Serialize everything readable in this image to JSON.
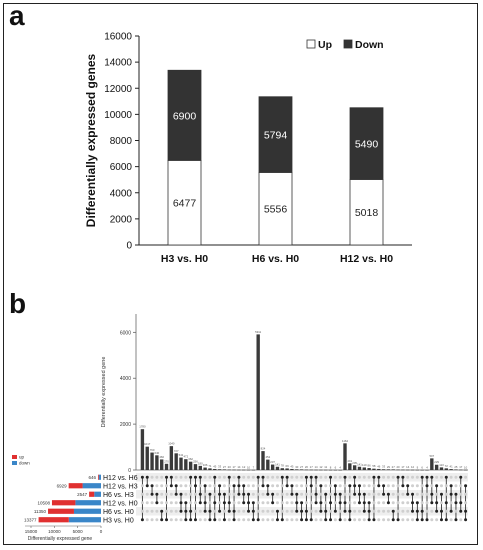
{
  "panels": {
    "a": "a",
    "b": "b"
  },
  "chart_data": [
    {
      "type": "bar",
      "stacked": true,
      "title": "",
      "xlabel": "",
      "ylabel": "Differentially expressed genes",
      "ylim": [
        0,
        16000
      ],
      "yticks": [
        0,
        2000,
        4000,
        6000,
        8000,
        10000,
        12000,
        14000,
        16000
      ],
      "ytick_labels": [
        "0",
        "2000",
        "4000",
        "6000",
        "8000",
        "10000",
        "12000",
        "14000",
        "16000"
      ],
      "categories": [
        "H3 vs. H0",
        "H6 vs. H0",
        "H12 vs. H0"
      ],
      "series": [
        {
          "name": "Up",
          "values": [
            6477,
            5556,
            5018
          ],
          "color": "#ffffff"
        },
        {
          "name": "Down",
          "values": [
            6900,
            5794,
            5490
          ],
          "color": "#333333"
        }
      ],
      "legend_position": "top-right"
    },
    {
      "type": "bar",
      "subtype": "upset",
      "title": "",
      "ylabel": "Differentially expressed gene",
      "ylim": [
        0,
        6800
      ],
      "yticks": [
        0,
        2000,
        4000,
        6000
      ],
      "ytick_labels": [
        "0",
        "2000",
        "4000",
        "6000"
      ],
      "intersection_values": [
        1780,
        1017,
        760,
        640,
        460,
        270,
        1040,
        727,
        541,
        472,
        362,
        256,
        180,
        106,
        71,
        45,
        33,
        27,
        20,
        17,
        14,
        12,
        10,
        7,
        5911,
        824,
        452,
        237,
        141,
        78,
        69,
        45,
        30,
        27,
        20,
        17,
        14,
        12,
        11,
        8,
        6,
        4,
        1162,
        291,
        205,
        141,
        110,
        86,
        58,
        46,
        33,
        29,
        27,
        20,
        17,
        14,
        12,
        9,
        6,
        4,
        507,
        229,
        113,
        72,
        41,
        25,
        17,
        10
      ],
      "sets": [
        {
          "name": "H12 vs. H6",
          "size": 646,
          "size_label": "646"
        },
        {
          "name": "H12 vs. H3",
          "size": 6929,
          "size_label": "6929"
        },
        {
          "name": "H6  vs. H3",
          "size": 2547,
          "size_label": "2547"
        },
        {
          "name": "H12 vs. H0",
          "size": 10508,
          "size_label": "10508"
        },
        {
          "name": "H6 vs. H0",
          "size": 11350,
          "size_label": "11350"
        },
        {
          "name": "H3 vs. H0",
          "size": 13377,
          "size_label": "13377"
        }
      ],
      "set_up_counts": [
        166,
        2986,
        1097,
        5018,
        5556,
        6477
      ],
      "set_size_axis": {
        "label": "Differentially expressed gene",
        "ticks": [
          15000,
          10000,
          5000,
          0
        ],
        "tick_labels": [
          "15000",
          "10000",
          "5000",
          "0"
        ],
        "xlim": [
          0,
          15000
        ]
      },
      "legend": [
        {
          "name": "up",
          "color": "#e03030"
        },
        {
          "name": "down",
          "color": "#3a86c8"
        }
      ]
    }
  ]
}
